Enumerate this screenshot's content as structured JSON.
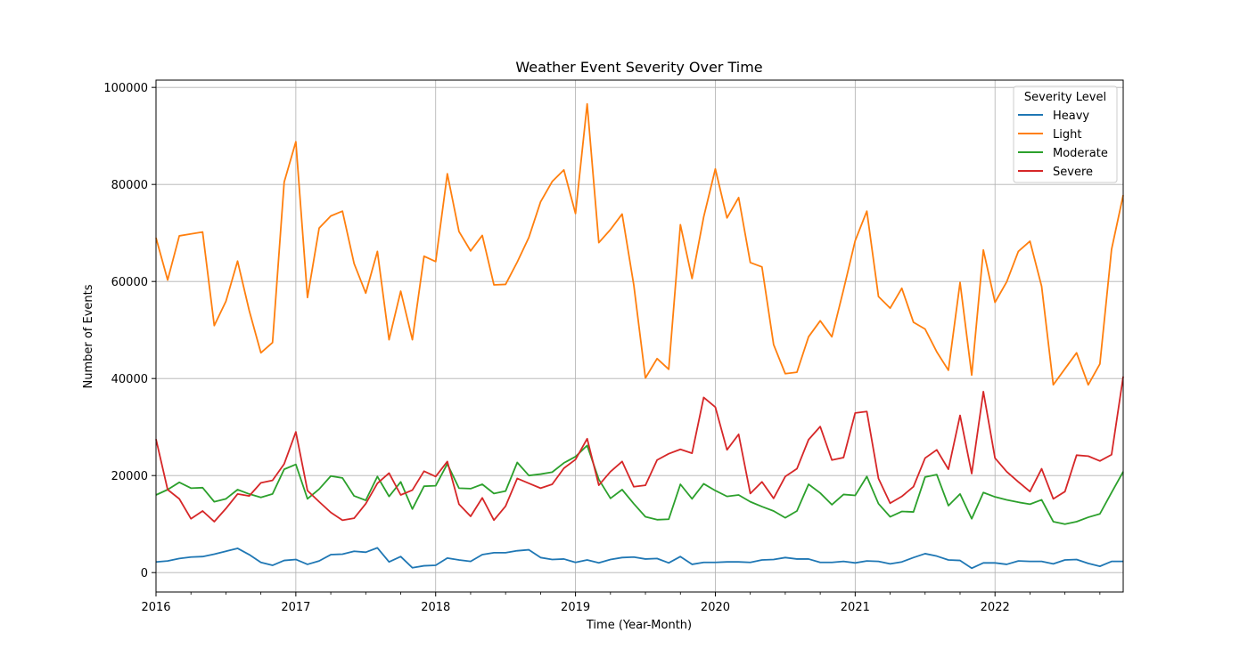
{
  "chart_data": {
    "type": "line",
    "title": "Weather Event Severity Over Time",
    "xlabel": "Time (Year-Month)",
    "ylabel": "Number of Events",
    "x_start": "2016-01",
    "x_end": "2022-12",
    "x_ticks": [
      "2016",
      "2017",
      "2018",
      "2019",
      "2020",
      "2021",
      "2022"
    ],
    "y_ticks": [
      "0",
      "20000",
      "40000",
      "60000",
      "80000",
      "100000"
    ],
    "ylim": [
      -4000,
      101500
    ],
    "grid": true,
    "legend": {
      "title": "Severity Level",
      "position": "top-right"
    },
    "series": [
      {
        "name": "Heavy",
        "color": "#1f77b4",
        "values": [
          2200,
          2400,
          2900,
          3200,
          3300,
          3800,
          4400,
          5000,
          3700,
          2100,
          1500,
          2500,
          2700,
          1700,
          2400,
          3700,
          3800,
          4400,
          4200,
          5100,
          2200,
          3300,
          1000,
          1400,
          1500,
          3000,
          2600,
          2300,
          3700,
          4100,
          4100,
          4500,
          4700,
          3100,
          2700,
          2800,
          2100,
          2600,
          2000,
          2700,
          3100,
          3200,
          2800,
          2900,
          2000,
          3300,
          1700,
          2100,
          2100,
          2200,
          2200,
          2100,
          2600,
          2700,
          3100,
          2800,
          2800,
          2100,
          2100,
          2300,
          2000,
          2400,
          2300,
          1800,
          2200,
          3100,
          3900,
          3400,
          2600,
          2500,
          900,
          2000,
          2000,
          1700,
          2400,
          2300,
          2300,
          1800,
          2600,
          2700,
          1900,
          1300,
          2300,
          2300
        ]
      },
      {
        "name": "Light",
        "color": "#ff7f0e",
        "values": [
          69000,
          60300,
          69400,
          69800,
          70200,
          50900,
          55900,
          64200,
          54000,
          45300,
          47400,
          80500,
          88800,
          56700,
          71000,
          73500,
          74500,
          63700,
          57600,
          66200,
          48000,
          58000,
          48000,
          65200,
          64100,
          82200,
          70300,
          66300,
          69500,
          59300,
          59400,
          64000,
          69100,
          76400,
          80600,
          83000,
          74000,
          96600,
          68000,
          70700,
          73900,
          59300,
          40100,
          44100,
          41900,
          71700,
          60600,
          73300,
          83200,
          73100,
          77300,
          63900,
          63000,
          47000,
          41000,
          41300,
          48600,
          51900,
          48600,
          58300,
          68400,
          74500,
          56900,
          54500,
          58600,
          51600,
          50200,
          45500,
          41700,
          59800,
          40700,
          66500,
          55700,
          59900,
          66200,
          68300,
          59000,
          38700,
          42000,
          45300,
          38700,
          43000,
          66600,
          77800
        ]
      },
      {
        "name": "Moderate",
        "color": "#2ca02c",
        "values": [
          16000,
          17100,
          18600,
          17400,
          17500,
          14600,
          15200,
          17100,
          16200,
          15500,
          16200,
          21300,
          22300,
          15200,
          17200,
          19900,
          19500,
          15800,
          14900,
          19800,
          15700,
          18700,
          13100,
          17800,
          17900,
          22400,
          17400,
          17300,
          18200,
          16300,
          16800,
          22700,
          20000,
          20300,
          20700,
          22600,
          23900,
          26200,
          19200,
          15300,
          17100,
          14200,
          11500,
          10900,
          11000,
          18200,
          15200,
          18300,
          16900,
          15700,
          16000,
          14600,
          13600,
          12700,
          11300,
          12700,
          18200,
          16400,
          14000,
          16100,
          15900,
          19800,
          14200,
          11500,
          12600,
          12500,
          19700,
          20200,
          13800,
          16200,
          11100,
          16500,
          15600,
          15000,
          14500,
          14100,
          15000,
          10500,
          10000,
          10500,
          11400,
          12100,
          16500,
          20800
        ]
      },
      {
        "name": "Severe",
        "color": "#d62728",
        "values": [
          27500,
          17100,
          15200,
          11100,
          12700,
          10500,
          13200,
          16200,
          15800,
          18500,
          19000,
          22400,
          29000,
          16900,
          14600,
          12400,
          10800,
          11200,
          14200,
          18400,
          20500,
          16000,
          17000,
          20900,
          19800,
          22900,
          14100,
          11600,
          15400,
          10800,
          13700,
          19400,
          18400,
          17400,
          18200,
          21500,
          23300,
          27600,
          18000,
          20800,
          22900,
          17700,
          18000,
          23200,
          24500,
          25400,
          24600,
          36100,
          34100,
          25300,
          28500,
          16300,
          18700,
          15300,
          19800,
          21400,
          27400,
          30100,
          23200,
          23700,
          32900,
          33200,
          19400,
          14300,
          15700,
          17700,
          23600,
          25300,
          21300,
          32400,
          20400,
          37300,
          23600,
          20800,
          18700,
          16700,
          21400,
          15200,
          16700,
          24200,
          24000,
          23000,
          24300,
          40400
        ]
      }
    ]
  }
}
